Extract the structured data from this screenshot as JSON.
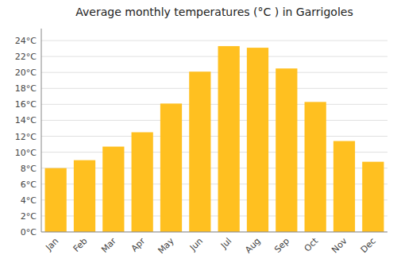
{
  "chart_data": {
    "type": "bar",
    "title": "Average monthly temperatures (°C ) in Garrigoles",
    "categories": [
      "Jan",
      "Feb",
      "Mar",
      "Apr",
      "May",
      "Jun",
      "Jul",
      "Aug",
      "Sep",
      "Oct",
      "Nov",
      "Dec"
    ],
    "values": [
      8.0,
      9.0,
      10.7,
      12.5,
      16.1,
      20.1,
      23.3,
      23.1,
      20.5,
      16.3,
      11.4,
      8.8
    ],
    "color": "#FFC020",
    "ylim": [
      0,
      25.5
    ],
    "yticks": [
      {
        "value": 0,
        "label": "0°C"
      },
      {
        "value": 2,
        "label": "2°C"
      },
      {
        "value": 4,
        "label": "4°C"
      },
      {
        "value": 6,
        "label": "6°C"
      },
      {
        "value": 8,
        "label": "8°C"
      },
      {
        "value": 10,
        "label": "10°C"
      },
      {
        "value": 12,
        "label": "12°C"
      },
      {
        "value": 14,
        "label": "14°C"
      },
      {
        "value": 16,
        "label": "16°C"
      },
      {
        "value": 18,
        "label": "18°C"
      },
      {
        "value": 20,
        "label": "20°C"
      },
      {
        "value": 22,
        "label": "22°C"
      },
      {
        "value": 24,
        "label": "24°C"
      }
    ],
    "grid": true
  }
}
